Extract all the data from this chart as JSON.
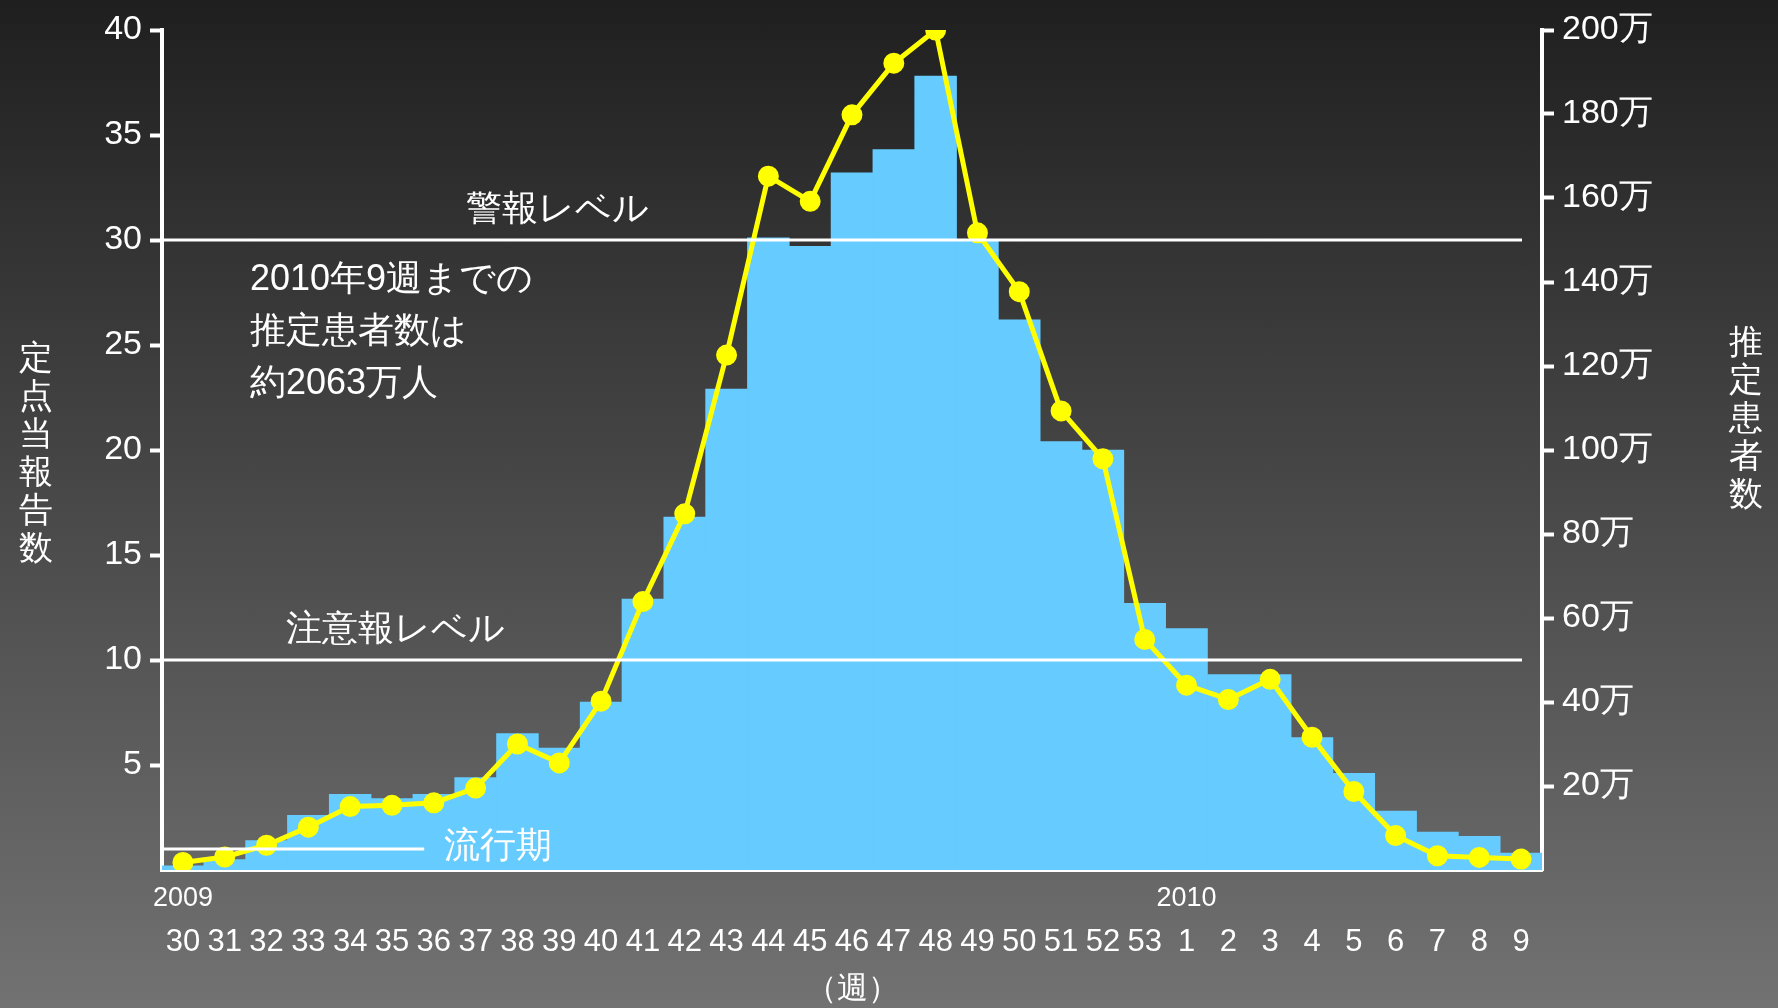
{
  "chart_data": {
    "type": "bar",
    "xlabel": "（週）",
    "ylabel": "定点当報告数",
    "y2label": "推定患者数",
    "categories": [
      "30",
      "31",
      "32",
      "33",
      "34",
      "35",
      "36",
      "37",
      "38",
      "39",
      "40",
      "41",
      "42",
      "43",
      "44",
      "45",
      "46",
      "47",
      "48",
      "49",
      "50",
      "51",
      "52",
      "53",
      "1",
      "2",
      "3",
      "4",
      "5",
      "6",
      "7",
      "8",
      "9"
    ],
    "series": [
      {
        "color": "#66ccff",
        "values": [
          0.2,
          0.5,
          1.4,
          2.6,
          3.6,
          3.4,
          3.6,
          4.4,
          6.5,
          5.8,
          8.0,
          12.9,
          16.8,
          22.9,
          30.1,
          29.7,
          33.2,
          34.3,
          37.8,
          30.0,
          26.2,
          20.4,
          20.0,
          12.7,
          11.5,
          9.3,
          9.3,
          6.3,
          4.6,
          2.8,
          1.8,
          1.6,
          0.8
        ]
      },
      {
        "type": "line",
        "axis": "y2",
        "color": "#ffff00",
        "values": [
          1.8,
          3.1,
          5.9,
          10.2,
          15.1,
          15.4,
          16,
          19.5,
          30,
          25.5,
          40.2,
          63.9,
          84.8,
          122.6,
          165.2,
          159.2,
          179.8,
          192.1,
          200,
          151.7,
          137.7,
          109.3,
          97.9,
          54.9,
          44.0,
          40.6,
          45.4,
          31.6,
          18.7,
          8.2,
          3.4,
          3.0,
          2.6
        ]
      }
    ],
    "ylim": [
      0,
      40
    ],
    "yticks": [
      5,
      10,
      15,
      20,
      25,
      30,
      35,
      40
    ],
    "y2lim": [
      0,
      200
    ],
    "y2ticks": [
      {
        "value": 20,
        "label": "20万"
      },
      {
        "value": 40,
        "label": "40万"
      },
      {
        "value": 60,
        "label": "60万"
      },
      {
        "value": 80,
        "label": "80万"
      },
      {
        "value": 100,
        "label": "100万"
      },
      {
        "value": 120,
        "label": "120万"
      },
      {
        "value": 140,
        "label": "140万"
      },
      {
        "value": 160,
        "label": "160万"
      },
      {
        "value": 180,
        "label": "180万"
      },
      {
        "value": 200,
        "label": "200万"
      }
    ],
    "ref_lines": [
      {
        "axis": "y",
        "value": 30,
        "label": "警報レベル",
        "color": "#ffffff"
      },
      {
        "axis": "y",
        "value": 10,
        "label": "注意報レベル",
        "color": "#ffffff"
      },
      {
        "axis": "y",
        "value": 1,
        "label": "流行期",
        "color": "#ffffff"
      }
    ],
    "annotations": [
      "2010年9週までの推定患者数は約2063万人",
      "2009",
      "2010"
    ],
    "grid": false,
    "legend": false,
    "marker": "circle",
    "line_style": "solid"
  }
}
